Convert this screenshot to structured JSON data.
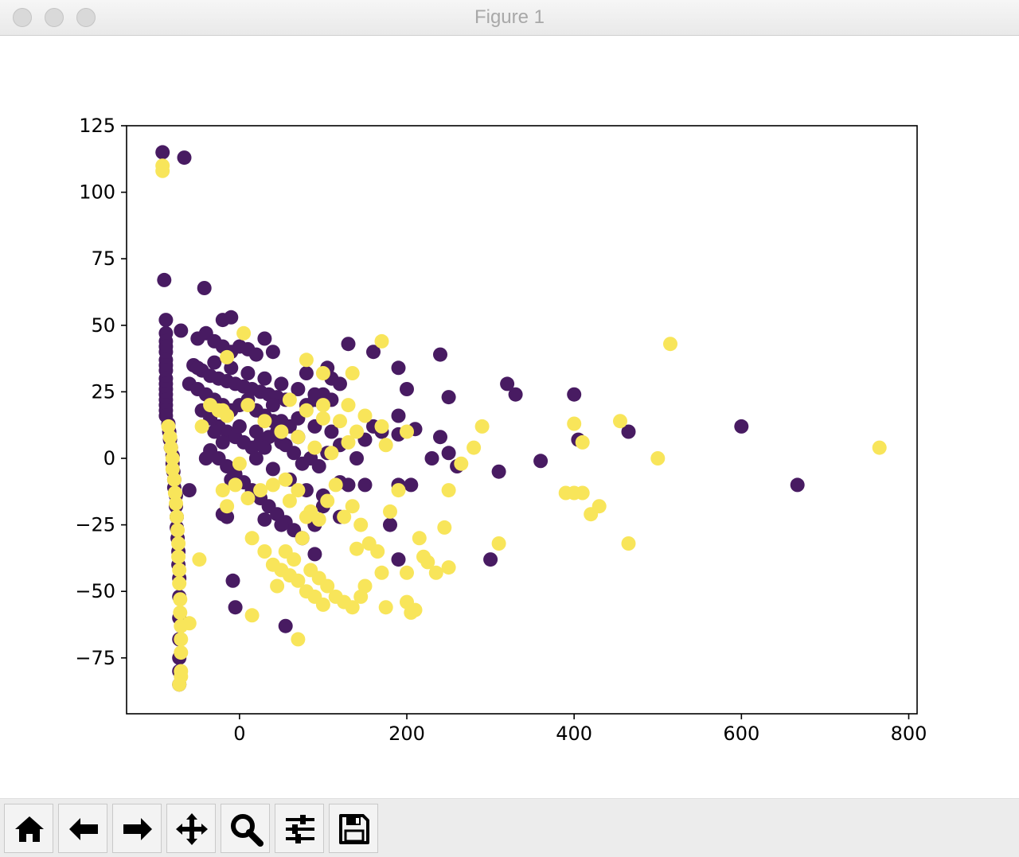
{
  "window": {
    "title": "Figure 1"
  },
  "toolbar": {
    "buttons": [
      {
        "name": "home",
        "icon": "home-icon"
      },
      {
        "name": "back",
        "icon": "arrow-left-icon"
      },
      {
        "name": "forward",
        "icon": "arrow-right-icon"
      },
      {
        "name": "pan",
        "icon": "move-icon"
      },
      {
        "name": "zoom",
        "icon": "magnifier-icon"
      },
      {
        "name": "configure-subplots",
        "icon": "sliders-icon"
      },
      {
        "name": "save",
        "icon": "floppy-disk-icon"
      }
    ]
  },
  "chart_data": {
    "type": "scatter",
    "title": "",
    "xlabel": "",
    "ylabel": "",
    "xlim": [
      -135,
      810
    ],
    "ylim": [
      -96,
      125
    ],
    "xticks": [
      0,
      200,
      400,
      600,
      800
    ],
    "yticks": [
      -75,
      -50,
      -25,
      0,
      25,
      50,
      75,
      100,
      125
    ],
    "xtick_labels": [
      "0",
      "200",
      "400",
      "600",
      "800"
    ],
    "ytick_labels": [
      "−75",
      "−50",
      "−25",
      "0",
      "25",
      "50",
      "75",
      "100",
      "125"
    ],
    "grid": false,
    "colors": {
      "purple": "#481b62",
      "yellow": "#f8e55a"
    },
    "series": [
      {
        "color": "#481b62",
        "points": [
          [
            -92,
            115
          ],
          [
            -66,
            113
          ],
          [
            -90,
            67
          ],
          [
            -42,
            64
          ],
          [
            -88,
            52
          ],
          [
            -10,
            53
          ],
          [
            -20,
            52
          ],
          [
            -70,
            48
          ],
          [
            -88,
            47
          ],
          [
            -88,
            44
          ],
          [
            -88,
            42
          ],
          [
            -88,
            40
          ],
          [
            -88,
            37
          ],
          [
            -88,
            35
          ],
          [
            -88,
            33
          ],
          [
            -88,
            30
          ],
          [
            -88,
            28
          ],
          [
            -88,
            26
          ],
          [
            -88,
            24
          ],
          [
            -88,
            22
          ],
          [
            -88,
            20
          ],
          [
            -88,
            18
          ],
          [
            -88,
            16
          ],
          [
            -85,
            13
          ],
          [
            -84,
            10
          ],
          [
            -83,
            7
          ],
          [
            -82,
            4
          ],
          [
            -80,
            1
          ],
          [
            -80,
            -2
          ],
          [
            -79,
            -5
          ],
          [
            -78,
            -8
          ],
          [
            -78,
            -11
          ],
          [
            -76,
            -14
          ],
          [
            -76,
            -18
          ],
          [
            -75,
            -22
          ],
          [
            -75,
            -26
          ],
          [
            -74,
            -30
          ],
          [
            -73,
            -35
          ],
          [
            -73,
            -40
          ],
          [
            -72,
            -45
          ],
          [
            -72,
            -52
          ],
          [
            -72,
            -60
          ],
          [
            -72,
            -68
          ],
          [
            -72,
            -75
          ],
          [
            -72,
            -80
          ],
          [
            -72,
            -85
          ],
          [
            -50,
            45
          ],
          [
            -40,
            47
          ],
          [
            -30,
            44
          ],
          [
            -20,
            42
          ],
          [
            -10,
            40
          ],
          [
            0,
            42
          ],
          [
            10,
            41
          ],
          [
            20,
            39
          ],
          [
            30,
            45
          ],
          [
            40,
            40
          ],
          [
            -55,
            35
          ],
          [
            -45,
            33
          ],
          [
            -35,
            31
          ],
          [
            -25,
            30
          ],
          [
            -15,
            29
          ],
          [
            -5,
            28
          ],
          [
            5,
            27
          ],
          [
            15,
            26
          ],
          [
            25,
            25
          ],
          [
            35,
            24
          ],
          [
            45,
            23
          ],
          [
            55,
            22
          ],
          [
            -60,
            28
          ],
          [
            -50,
            26
          ],
          [
            -40,
            24
          ],
          [
            -30,
            22
          ],
          [
            -20,
            20
          ],
          [
            -10,
            18
          ],
          [
            0,
            20
          ],
          [
            10,
            22
          ],
          [
            20,
            18
          ],
          [
            30,
            16
          ],
          [
            40,
            20
          ],
          [
            50,
            14
          ],
          [
            60,
            12
          ],
          [
            70,
            15
          ],
          [
            80,
            20
          ],
          [
            90,
            22
          ],
          [
            100,
            24
          ],
          [
            110,
            30
          ],
          [
            120,
            28
          ],
          [
            -45,
            18
          ],
          [
            -35,
            15
          ],
          [
            -25,
            12
          ],
          [
            -15,
            10
          ],
          [
            -5,
            8
          ],
          [
            5,
            6
          ],
          [
            15,
            4
          ],
          [
            25,
            6
          ],
          [
            35,
            8
          ],
          [
            45,
            10
          ],
          [
            55,
            5
          ],
          [
            65,
            2
          ],
          [
            75,
            -2
          ],
          [
            85,
            0
          ],
          [
            95,
            -3
          ],
          [
            105,
            2
          ],
          [
            -35,
            3
          ],
          [
            -25,
            0
          ],
          [
            -15,
            -3
          ],
          [
            -5,
            -6
          ],
          [
            5,
            -9
          ],
          [
            15,
            -12
          ],
          [
            25,
            -15
          ],
          [
            35,
            -18
          ],
          [
            45,
            -21
          ],
          [
            55,
            -24
          ],
          [
            65,
            -27
          ],
          [
            75,
            -30
          ],
          [
            -20,
            -21
          ],
          [
            -15,
            -22
          ],
          [
            30,
            -23
          ],
          [
            50,
            -25
          ],
          [
            90,
            -25
          ],
          [
            100,
            -18
          ],
          [
            120,
            -22
          ],
          [
            130,
            -10
          ],
          [
            150,
            -10
          ],
          [
            190,
            -10
          ],
          [
            205,
            -10
          ],
          [
            -60,
            -12
          ],
          [
            -50,
            34
          ],
          [
            -30,
            36
          ],
          [
            -10,
            34
          ],
          [
            10,
            32
          ],
          [
            30,
            30
          ],
          [
            50,
            28
          ],
          [
            70,
            26
          ],
          [
            90,
            24
          ],
          [
            110,
            22
          ],
          [
            80,
            32
          ],
          [
            105,
            34
          ],
          [
            130,
            43
          ],
          [
            160,
            40
          ],
          [
            190,
            34
          ],
          [
            200,
            26
          ],
          [
            240,
            39
          ],
          [
            250,
            23
          ],
          [
            190,
            16
          ],
          [
            210,
            11
          ],
          [
            240,
            8
          ],
          [
            150,
            7
          ],
          [
            170,
            10
          ],
          [
            190,
            9
          ],
          [
            230,
            0
          ],
          [
            250,
            2
          ],
          [
            260,
            -3
          ],
          [
            310,
            -5
          ],
          [
            360,
            -1
          ],
          [
            320,
            28
          ],
          [
            330,
            24
          ],
          [
            400,
            24
          ],
          [
            405,
            7
          ],
          [
            465,
            10
          ],
          [
            600,
            12
          ],
          [
            667,
            -10
          ],
          [
            190,
            -38
          ],
          [
            300,
            -38
          ],
          [
            90,
            -36
          ],
          [
            180,
            -25
          ],
          [
            -8,
            -46
          ],
          [
            -5,
            -56
          ],
          [
            55,
            -63
          ],
          [
            120,
            -9
          ],
          [
            -40,
            0
          ],
          [
            -30,
            10
          ],
          [
            -10,
            -8
          ],
          [
            20,
            0
          ],
          [
            40,
            -4
          ],
          [
            60,
            -8
          ],
          [
            80,
            -12
          ],
          [
            100,
            -14
          ],
          [
            120,
            5
          ],
          [
            140,
            0
          ],
          [
            160,
            12
          ],
          [
            110,
            10
          ],
          [
            90,
            12
          ],
          [
            70,
            8
          ],
          [
            50,
            6
          ],
          [
            30,
            4
          ],
          [
            -20,
            6
          ],
          [
            0,
            12
          ],
          [
            20,
            10
          ],
          [
            40,
            14
          ]
        ]
      },
      {
        "color": "#f8e55a",
        "points": [
          [
            -92,
            110
          ],
          [
            -92,
            108
          ],
          [
            5,
            47
          ],
          [
            170,
            44
          ],
          [
            515,
            43
          ],
          [
            80,
            37
          ],
          [
            -15,
            38
          ],
          [
            135,
            32
          ],
          [
            100,
            32
          ],
          [
            130,
            20
          ],
          [
            175,
            5
          ],
          [
            290,
            12
          ],
          [
            280,
            4
          ],
          [
            400,
            13
          ],
          [
            410,
            6
          ],
          [
            455,
            14
          ],
          [
            500,
            0
          ],
          [
            765,
            4
          ],
          [
            -85,
            12
          ],
          [
            -83,
            8
          ],
          [
            -82,
            4
          ],
          [
            -80,
            0
          ],
          [
            -80,
            -4
          ],
          [
            -78,
            -8
          ],
          [
            -77,
            -13
          ],
          [
            -76,
            -17
          ],
          [
            -75,
            -22
          ],
          [
            -74,
            -27
          ],
          [
            -73,
            -32
          ],
          [
            -73,
            -37
          ],
          [
            -72,
            -42
          ],
          [
            -72,
            -47
          ],
          [
            -71,
            -53
          ],
          [
            -71,
            -58
          ],
          [
            -70,
            -63
          ],
          [
            -70,
            -68
          ],
          [
            -70,
            -73
          ],
          [
            -70,
            -80
          ],
          [
            -70,
            -82
          ],
          [
            -72,
            -85
          ],
          [
            -60,
            -62
          ],
          [
            -48,
            -38
          ],
          [
            -20,
            -12
          ],
          [
            -5,
            -10
          ],
          [
            10,
            -15
          ],
          [
            25,
            -12
          ],
          [
            40,
            -10
          ],
          [
            55,
            -8
          ],
          [
            70,
            -12
          ],
          [
            85,
            -20
          ],
          [
            95,
            -23
          ],
          [
            105,
            -16
          ],
          [
            115,
            -10
          ],
          [
            125,
            -22
          ],
          [
            135,
            -18
          ],
          [
            145,
            -25
          ],
          [
            155,
            -32
          ],
          [
            165,
            -35
          ],
          [
            170,
            -43
          ],
          [
            180,
            -20
          ],
          [
            190,
            -12
          ],
          [
            200,
            -43
          ],
          [
            210,
            -57
          ],
          [
            220,
            -37
          ],
          [
            225,
            -39
          ],
          [
            235,
            -43
          ],
          [
            245,
            -26
          ],
          [
            250,
            -12
          ],
          [
            250,
            -41
          ],
          [
            265,
            -2
          ],
          [
            310,
            -32
          ],
          [
            390,
            -13
          ],
          [
            400,
            -13
          ],
          [
            410,
            -13
          ],
          [
            420,
            -21
          ],
          [
            430,
            -18
          ],
          [
            465,
            -32
          ],
          [
            15,
            -59
          ],
          [
            45,
            -48
          ],
          [
            55,
            -35
          ],
          [
            65,
            -38
          ],
          [
            75,
            -30
          ],
          [
            85,
            -42
          ],
          [
            95,
            -45
          ],
          [
            105,
            -48
          ],
          [
            115,
            -52
          ],
          [
            125,
            -54
          ],
          [
            135,
            -56
          ],
          [
            145,
            -52
          ],
          [
            150,
            -48
          ],
          [
            15,
            -30
          ],
          [
            30,
            -35
          ],
          [
            40,
            -40
          ],
          [
            50,
            -42
          ],
          [
            60,
            -44
          ],
          [
            70,
            -46
          ],
          [
            80,
            -50
          ],
          [
            90,
            -52
          ],
          [
            100,
            -55
          ],
          [
            175,
            -56
          ],
          [
            200,
            -54
          ],
          [
            205,
            -58
          ],
          [
            70,
            -68
          ],
          [
            -45,
            12
          ],
          [
            -20,
            18
          ],
          [
            10,
            20
          ],
          [
            30,
            14
          ],
          [
            50,
            10
          ],
          [
            70,
            8
          ],
          [
            90,
            4
          ],
          [
            110,
            2
          ],
          [
            130,
            6
          ],
          [
            150,
            16
          ],
          [
            170,
            12
          ],
          [
            200,
            10
          ],
          [
            60,
            22
          ],
          [
            80,
            18
          ],
          [
            100,
            20
          ],
          [
            120,
            14
          ],
          [
            140,
            10
          ],
          [
            -35,
            20
          ],
          [
            -25,
            18
          ],
          [
            -15,
            16
          ],
          [
            100,
            15
          ],
          [
            60,
            -16
          ],
          [
            80,
            -22
          ],
          [
            140,
            -34
          ],
          [
            215,
            -30
          ],
          [
            -15,
            -18
          ],
          [
            0,
            -2
          ]
        ]
      }
    ]
  }
}
